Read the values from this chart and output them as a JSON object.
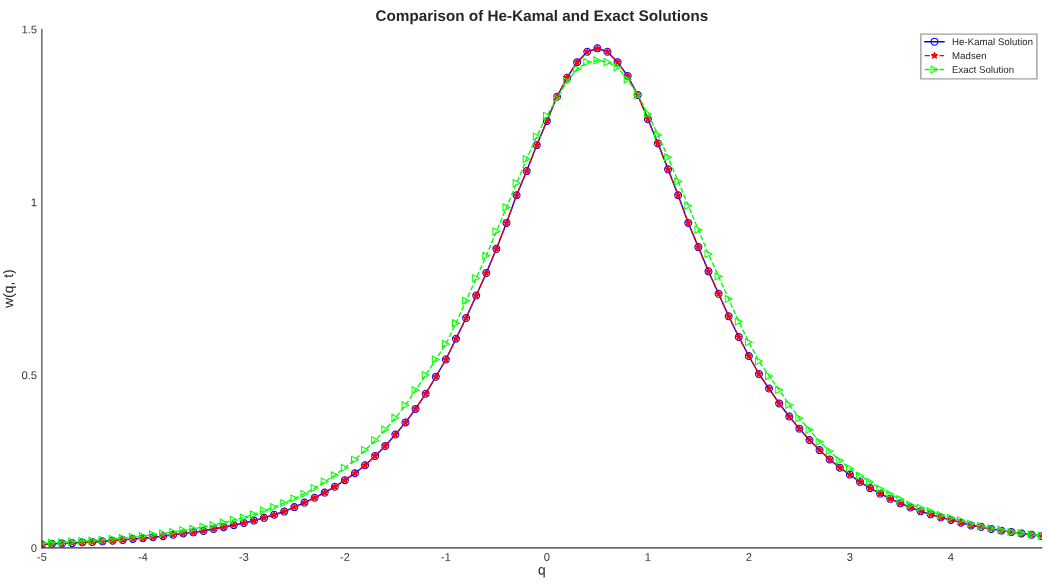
{
  "chart_data": {
    "type": "line",
    "title": "Comparison of He-Kamal and Exact Solutions",
    "xlabel": "q",
    "ylabel": "w(q, t)",
    "x": [
      -5.0,
      -4.9,
      -4.8,
      -4.7,
      -4.6,
      -4.5,
      -4.4,
      -4.3,
      -4.2,
      -4.1,
      -4.0,
      -3.9,
      -3.8,
      -3.7,
      -3.6,
      -3.5,
      -3.4,
      -3.3,
      -3.2,
      -3.1,
      -3.0,
      -2.9,
      -2.8,
      -2.7,
      -2.6,
      -2.5,
      -2.4,
      -2.3,
      -2.2,
      -2.1,
      -2.0,
      -1.9,
      -1.8,
      -1.7,
      -1.6,
      -1.5,
      -1.4,
      -1.3,
      -1.2,
      -1.1,
      -1.0,
      -0.9,
      -0.8,
      -0.7,
      -0.6,
      -0.5,
      -0.4,
      -0.3,
      -0.2,
      -0.1,
      0.0,
      0.1,
      0.2,
      0.3,
      0.4,
      0.5,
      0.6,
      0.7,
      0.8,
      0.9,
      1.0,
      1.1,
      1.2,
      1.3,
      1.4,
      1.5,
      1.6,
      1.7,
      1.8,
      1.9,
      2.0,
      2.1,
      2.2,
      2.3,
      2.4,
      2.5,
      2.6,
      2.7,
      2.8,
      2.9,
      3.0,
      3.1,
      3.2,
      3.3,
      3.4,
      3.5,
      3.6,
      3.7,
      3.8,
      3.9,
      4.0,
      4.1,
      4.2,
      4.3,
      4.4,
      4.5,
      4.6,
      4.7,
      4.8,
      4.9
    ],
    "series": [
      {
        "name": "He-Kamal Solution",
        "color": "#0000ff",
        "marker": "circle",
        "line_style": "solid",
        "values": [
          0.01,
          0.012,
          0.013,
          0.014,
          0.016,
          0.017,
          0.019,
          0.021,
          0.023,
          0.026,
          0.028,
          0.031,
          0.034,
          0.038,
          0.042,
          0.045,
          0.049,
          0.055,
          0.06,
          0.066,
          0.072,
          0.079,
          0.087,
          0.096,
          0.105,
          0.118,
          0.131,
          0.145,
          0.16,
          0.177,
          0.196,
          0.216,
          0.239,
          0.266,
          0.295,
          0.328,
          0.363,
          0.402,
          0.446,
          0.495,
          0.545,
          0.605,
          0.665,
          0.73,
          0.795,
          0.865,
          0.94,
          1.02,
          1.09,
          1.165,
          1.235,
          1.305,
          1.36,
          1.405,
          1.435,
          1.445,
          1.435,
          1.405,
          1.365,
          1.31,
          1.24,
          1.17,
          1.095,
          1.02,
          0.94,
          0.87,
          0.8,
          0.735,
          0.67,
          0.61,
          0.555,
          0.503,
          0.461,
          0.418,
          0.38,
          0.345,
          0.312,
          0.283,
          0.256,
          0.232,
          0.212,
          0.191,
          0.173,
          0.157,
          0.142,
          0.129,
          0.117,
          0.106,
          0.097,
          0.088,
          0.081,
          0.073,
          0.065,
          0.061,
          0.055,
          0.05,
          0.046,
          0.042,
          0.038,
          0.034
        ]
      },
      {
        "name": "Madsen",
        "color": "#ff0000",
        "marker": "star",
        "line_style": "dashed",
        "values": [
          0.01,
          0.012,
          0.013,
          0.014,
          0.016,
          0.017,
          0.019,
          0.021,
          0.023,
          0.026,
          0.028,
          0.031,
          0.034,
          0.038,
          0.042,
          0.045,
          0.049,
          0.055,
          0.06,
          0.066,
          0.072,
          0.079,
          0.087,
          0.096,
          0.105,
          0.118,
          0.131,
          0.145,
          0.16,
          0.177,
          0.196,
          0.216,
          0.239,
          0.266,
          0.295,
          0.328,
          0.363,
          0.402,
          0.446,
          0.495,
          0.545,
          0.605,
          0.665,
          0.73,
          0.795,
          0.865,
          0.94,
          1.02,
          1.09,
          1.165,
          1.235,
          1.305,
          1.36,
          1.405,
          1.435,
          1.445,
          1.435,
          1.405,
          1.365,
          1.31,
          1.24,
          1.17,
          1.095,
          1.02,
          0.94,
          0.87,
          0.8,
          0.735,
          0.67,
          0.61,
          0.555,
          0.503,
          0.461,
          0.418,
          0.38,
          0.345,
          0.312,
          0.283,
          0.256,
          0.232,
          0.212,
          0.191,
          0.173,
          0.157,
          0.142,
          0.129,
          0.117,
          0.106,
          0.097,
          0.088,
          0.081,
          0.073,
          0.065,
          0.061,
          0.055,
          0.05,
          0.046,
          0.042,
          0.038,
          0.034
        ]
      },
      {
        "name": "Exact Solution",
        "color": "#00ff00",
        "marker": "triangle",
        "line_style": "dashed",
        "values": [
          0.013,
          0.015,
          0.016,
          0.018,
          0.02,
          0.021,
          0.024,
          0.026,
          0.029,
          0.032,
          0.034,
          0.039,
          0.042,
          0.046,
          0.051,
          0.055,
          0.061,
          0.066,
          0.073,
          0.081,
          0.088,
          0.097,
          0.108,
          0.118,
          0.13,
          0.143,
          0.156,
          0.173,
          0.192,
          0.21,
          0.232,
          0.255,
          0.283,
          0.311,
          0.342,
          0.376,
          0.413,
          0.456,
          0.5,
          0.545,
          0.59,
          0.65,
          0.715,
          0.78,
          0.845,
          0.915,
          0.985,
          1.055,
          1.125,
          1.19,
          1.25,
          1.3,
          1.35,
          1.385,
          1.405,
          1.41,
          1.405,
          1.39,
          1.355,
          1.31,
          1.255,
          1.195,
          1.13,
          1.06,
          0.99,
          0.92,
          0.85,
          0.785,
          0.72,
          0.655,
          0.595,
          0.54,
          0.497,
          0.457,
          0.414,
          0.375,
          0.342,
          0.307,
          0.28,
          0.253,
          0.23,
          0.209,
          0.191,
          0.171,
          0.156,
          0.141,
          0.125,
          0.116,
          0.106,
          0.095,
          0.087,
          0.08,
          0.07,
          0.063,
          0.057,
          0.052,
          0.046,
          0.043,
          0.039,
          0.035
        ]
      }
    ],
    "xlim": [
      -5,
      4.9
    ],
    "ylim": [
      0,
      1.5
    ],
    "xticks": [
      -5,
      -4,
      -3,
      -2,
      -1,
      0,
      1,
      2,
      3,
      4
    ],
    "yticks": [
      0,
      0.5,
      1,
      1.5
    ],
    "grid": false,
    "legend": "top right"
  }
}
